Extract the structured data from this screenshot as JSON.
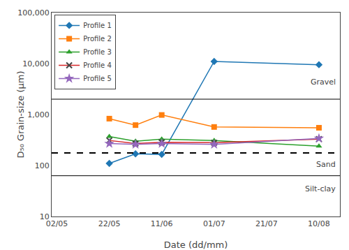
{
  "chart_data": {
    "type": "line",
    "xlabel": "Date (dd/mm)",
    "ylabel": "D₅₀ Grain-size (μm)",
    "log": "y",
    "grid": false,
    "legend": "upper left",
    "xlim": [
      -0.1,
      5.4
    ],
    "xticks": [
      {
        "value": 0,
        "label": "02/05"
      },
      {
        "value": 1,
        "label": "22/05"
      },
      {
        "value": 2,
        "label": "11/06"
      },
      {
        "value": 3,
        "label": "01/07"
      },
      {
        "value": 4,
        "label": "21/07"
      },
      {
        "value": 5,
        "label": "10/08"
      }
    ],
    "ylim": [
      10,
      100000
    ],
    "yticks": [
      10,
      100,
      {
        "value": 1000,
        "label": "1,000"
      },
      {
        "value": 10000,
        "label": "10,000"
      },
      {
        "value": 100000,
        "label": "100,000"
      }
    ],
    "x": [
      1,
      1.5,
      2,
      3,
      5
    ],
    "series": [
      {
        "name": "Profile 1",
        "marker": "diamond",
        "values": [
          110,
          170,
          165,
          11000,
          9500
        ]
      },
      {
        "name": "Profile 2",
        "marker": "square",
        "values": [
          830,
          620,
          980,
          570,
          550
        ]
      },
      {
        "name": "Profile 3",
        "marker": "triangle-up",
        "values": [
          370,
          300,
          330,
          310,
          240
        ]
      },
      {
        "name": "Profile 4",
        "marker": "x",
        "values": [
          310,
          270,
          285,
          280,
          330
        ]
      },
      {
        "name": "Profile 5",
        "marker": "star",
        "values": [
          270,
          260,
          270,
          260,
          340
        ]
      }
    ],
    "hlines": [
      {
        "value": 2000,
        "line_style": "solid"
      },
      {
        "value": 63,
        "line_style": "solid"
      },
      {
        "value": 177,
        "line_style": "dashed"
      }
    ],
    "annotations": [
      "Gravel",
      "Sand",
      "Silt-clay"
    ]
  }
}
